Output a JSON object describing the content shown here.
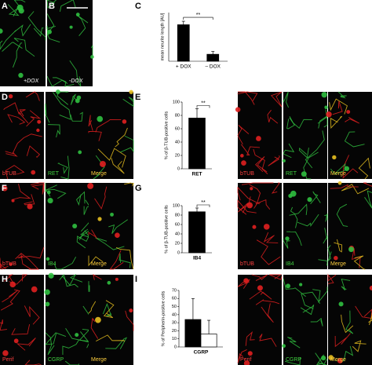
{
  "panel_labels": [
    "A",
    "B",
    "C",
    "D",
    "E",
    "F",
    "G",
    "H",
    "I"
  ],
  "image_labels": {
    "top": [
      "+DOX",
      "-DOX"
    ],
    "row_d_left": [
      "bTUB",
      "RET",
      "Merge"
    ],
    "row_d_right": [
      "bTUB",
      "RET",
      "Merge"
    ],
    "row_f_left": [
      "bTUB",
      "IB4",
      "Merge"
    ],
    "row_f_right": [
      "bTUB",
      "IB4",
      "Merge"
    ],
    "row_h_left": [
      "Perif",
      "CGRP",
      "Merge"
    ],
    "row_h_right": [
      "Perif",
      "CGRP",
      "Merge"
    ]
  },
  "chart_data": [
    {
      "type": "bar",
      "ylabel": "mean neurite length [AU]",
      "categories": [
        "+ DOX",
        "– DOX"
      ],
      "series": [
        {
          "color": "#000000",
          "values": [
            10.5,
            2
          ],
          "errors": [
            1,
            0.8
          ]
        }
      ],
      "ylim": [
        0,
        14
      ],
      "significance": "**"
    },
    {
      "type": "bar",
      "ylabel": "% of β-TUB-positive cells",
      "categories": [
        "RET"
      ],
      "series": [
        {
          "color": "#000000",
          "values": [
            76
          ],
          "errors": [
            14
          ]
        }
      ],
      "ylim": [
        0,
        100
      ],
      "yticks": [
        0,
        20,
        40,
        60,
        80,
        100
      ],
      "significance": "**"
    },
    {
      "type": "bar",
      "ylabel": "% of β-TUB-positive cells",
      "categories": [
        "IB4"
      ],
      "series": [
        {
          "color": "#000000",
          "values": [
            87
          ],
          "errors": [
            8
          ]
        }
      ],
      "ylim": [
        0,
        100
      ],
      "yticks": [
        0,
        20,
        40,
        60,
        80,
        100
      ],
      "significance": "**"
    },
    {
      "type": "bar",
      "ylabel": "% of Peripherin-positive cells",
      "categories": [
        "CGRP"
      ],
      "series": [
        {
          "color": "#000000",
          "values": [
            34
          ],
          "errors": [
            26
          ]
        },
        {
          "color": "#ffffff",
          "values": [
            16
          ],
          "errors": [
            17
          ]
        }
      ],
      "ylim": [
        0,
        70
      ],
      "yticks": [
        0,
        10,
        20,
        30,
        40,
        50,
        60,
        70
      ]
    }
  ]
}
